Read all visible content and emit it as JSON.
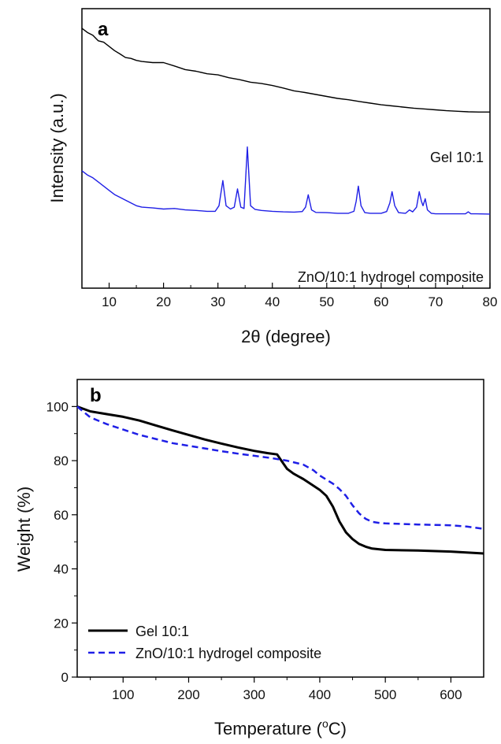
{
  "chart_data": [
    {
      "panel": "a",
      "type": "line",
      "xlabel": "2θ (degree)",
      "ylabel": "Intensity (a.u.)",
      "xlim": [
        5,
        80
      ],
      "xticks": [
        10,
        20,
        30,
        40,
        50,
        60,
        70,
        80
      ],
      "ylim": [
        0,
        100
      ],
      "y_ticks_shown": false,
      "grid": false,
      "series": [
        {
          "name": "Gel 10:1",
          "color": "#000000",
          "style": "solid",
          "x": [
            5,
            6,
            7,
            8,
            9,
            10,
            11,
            12,
            13,
            14,
            15,
            16,
            18,
            20,
            22,
            24,
            26,
            28,
            30,
            32,
            34,
            36,
            38,
            40,
            42,
            44,
            46,
            48,
            50,
            52,
            54,
            56,
            58,
            60,
            62,
            64,
            66,
            68,
            70,
            72,
            74,
            76,
            78,
            80
          ],
          "y": [
            93,
            91.5,
            90.5,
            88.5,
            88,
            86.5,
            85,
            83.8,
            82.5,
            82.2,
            81.5,
            81.1,
            80.7,
            80.7,
            79.5,
            78.2,
            77.6,
            76.7,
            76.3,
            75.3,
            74.6,
            73.7,
            73.2,
            72.5,
            71.6,
            70.6,
            70,
            69.3,
            68.6,
            67.9,
            67.4,
            66.8,
            66.2,
            65.6,
            65.2,
            64.8,
            64.4,
            64.1,
            63.8,
            63.5,
            63.3,
            63.1,
            63,
            63
          ]
        },
        {
          "name": "ZnO/10:1 hydrogel composite",
          "color": "#1f1fe6",
          "style": "solid",
          "x": [
            5,
            6,
            7,
            8,
            9,
            10,
            11,
            12,
            13,
            14,
            15,
            16,
            18,
            20,
            22,
            24,
            26,
            28,
            29.5,
            30.2,
            30.9,
            31.5,
            32.3,
            33,
            33.6,
            34.2,
            34.8,
            35.4,
            36,
            36.8,
            38,
            40,
            42,
            44,
            45.5,
            46.1,
            46.6,
            47.2,
            48,
            50,
            52,
            54,
            55,
            55.4,
            55.8,
            56.3,
            57,
            58,
            60,
            61,
            61.6,
            62,
            62.5,
            63.2,
            64.5,
            65.2,
            65.8,
            66.5,
            67,
            67.4,
            67.7,
            68.1,
            68.5,
            69.2,
            70,
            72,
            74,
            75.5,
            76,
            76.5,
            77.5,
            80
          ],
          "y": [
            42,
            40.5,
            39.5,
            38,
            36.5,
            35,
            33.5,
            32.5,
            31.5,
            30.5,
            29.5,
            29,
            28.7,
            28.3,
            28.5,
            28,
            27.8,
            27.5,
            27.5,
            29.5,
            38.5,
            29.5,
            28.3,
            29,
            35.5,
            29,
            28.5,
            50.5,
            29.5,
            28.2,
            27.8,
            27.5,
            27.3,
            27.2,
            27.4,
            29,
            33.4,
            28,
            27.1,
            27,
            26.8,
            26.8,
            27.5,
            31,
            36.5,
            29.5,
            27,
            26.8,
            26.8,
            27.4,
            30.5,
            34.5,
            29.5,
            27,
            26.8,
            28,
            27.3,
            29,
            34.5,
            31,
            29.5,
            32,
            28,
            26.8,
            26.6,
            26.6,
            26.6,
            26.6,
            27.3,
            26.6,
            26.6,
            26.5
          ]
        }
      ],
      "annotations": [
        "Gel 10:1",
        "ZnO/10:1 hydrogel composite"
      ]
    },
    {
      "panel": "b",
      "type": "line",
      "xlabel": "Temperature (°C)",
      "xlabel_main": "Temperature (",
      "xlabel_unit_sup": "o",
      "xlabel_unit_end": "C)",
      "ylabel": "Weight (%)",
      "xlim": [
        30,
        650
      ],
      "xticks": [
        100,
        200,
        300,
        400,
        500,
        600
      ],
      "ylim": [
        0,
        110
      ],
      "yticks": [
        0,
        20,
        40,
        60,
        80,
        100
      ],
      "grid": false,
      "legend_position": "bottom-left",
      "series": [
        {
          "name": "Gel 10:1",
          "color": "#000000",
          "style": "solid",
          "x": [
            30,
            50,
            75,
            100,
            125,
            150,
            175,
            200,
            225,
            250,
            275,
            300,
            320,
            335,
            340,
            350,
            360,
            375,
            390,
            400,
            410,
            420,
            430,
            440,
            450,
            460,
            470,
            480,
            500,
            550,
            600,
            650
          ],
          "y": [
            100,
            98.2,
            97.2,
            96.2,
            94.8,
            93,
            91.2,
            89.5,
            87.8,
            86.3,
            84.9,
            83.6,
            82.8,
            82.3,
            80.5,
            77,
            75.2,
            73.2,
            70.8,
            69.2,
            67,
            63,
            57.5,
            53.5,
            51,
            49.2,
            48.2,
            47.5,
            47,
            46.8,
            46.4,
            45.7
          ]
        },
        {
          "name": "ZnO/10:1 hydrogel composite",
          "color": "#1f1fe6",
          "style": "dashed",
          "x": [
            30,
            50,
            75,
            100,
            125,
            150,
            175,
            200,
            225,
            250,
            275,
            300,
            325,
            350,
            375,
            390,
            400,
            420,
            430,
            440,
            450,
            460,
            470,
            480,
            490,
            500,
            550,
            600,
            625,
            650
          ],
          "y": [
            100,
            96,
            93.5,
            91.5,
            89.5,
            88,
            86.5,
            85.5,
            84.5,
            83.5,
            82.6,
            81.8,
            81,
            80,
            78.5,
            76.5,
            74.5,
            71.5,
            69.5,
            67,
            63.5,
            60.5,
            58.5,
            57.4,
            57,
            56.8,
            56.4,
            56.1,
            55.6,
            54.8
          ]
        }
      ]
    }
  ]
}
